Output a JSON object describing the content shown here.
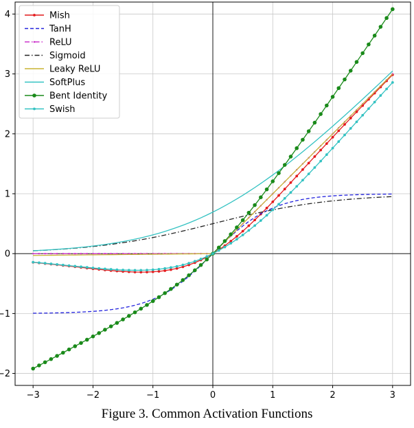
{
  "caption": "Figure 3.  Common Activation Functions",
  "chart_data": {
    "type": "line",
    "title": "",
    "xlabel": "",
    "ylabel": "",
    "xlim": [
      -3.3,
      3.3
    ],
    "ylim": [
      -2.2,
      4.2
    ],
    "xticks": [
      -3,
      -2,
      -1,
      0,
      1,
      2,
      3
    ],
    "yticks": [
      -2,
      -1,
      0,
      1,
      2,
      3,
      4
    ],
    "xtick_labels": [
      "−3",
      "−2",
      "−1",
      "0",
      "1",
      "2",
      "3"
    ],
    "ytick_labels": [
      "−2",
      "−1",
      "0",
      "1",
      "2",
      "3",
      "4"
    ],
    "grid": true,
    "legend_position": "top-left",
    "x_range": [
      -3,
      3
    ],
    "samples": 61,
    "series": [
      {
        "name": "Mish",
        "function": "mish",
        "color": "#e41a1c",
        "style": "solid",
        "marker": "dot"
      },
      {
        "name": "TanH",
        "function": "tanh",
        "color": "#2222dd",
        "style": "dashed",
        "marker": "none"
      },
      {
        "name": "ReLU",
        "function": "relu",
        "color": "#cc33cc",
        "style": "dashdot",
        "marker": "small"
      },
      {
        "name": "Sigmoid",
        "function": "sigmoid",
        "color": "#222222",
        "style": "dashdot",
        "marker": "none"
      },
      {
        "name": "Leaky ReLU",
        "function": "leaky_relu",
        "color": "#c8b432",
        "style": "solid",
        "marker": "none"
      },
      {
        "name": "SoftPlus",
        "function": "softplus",
        "color": "#33c2c2",
        "style": "solid",
        "marker": "none"
      },
      {
        "name": "Bent Identity",
        "function": "bent_identity",
        "color": "#1a8a1a",
        "style": "solid",
        "marker": "bigdot"
      },
      {
        "name": "Swish",
        "function": "swish",
        "color": "#33c2c2",
        "style": "solid",
        "marker": "dot"
      }
    ]
  }
}
